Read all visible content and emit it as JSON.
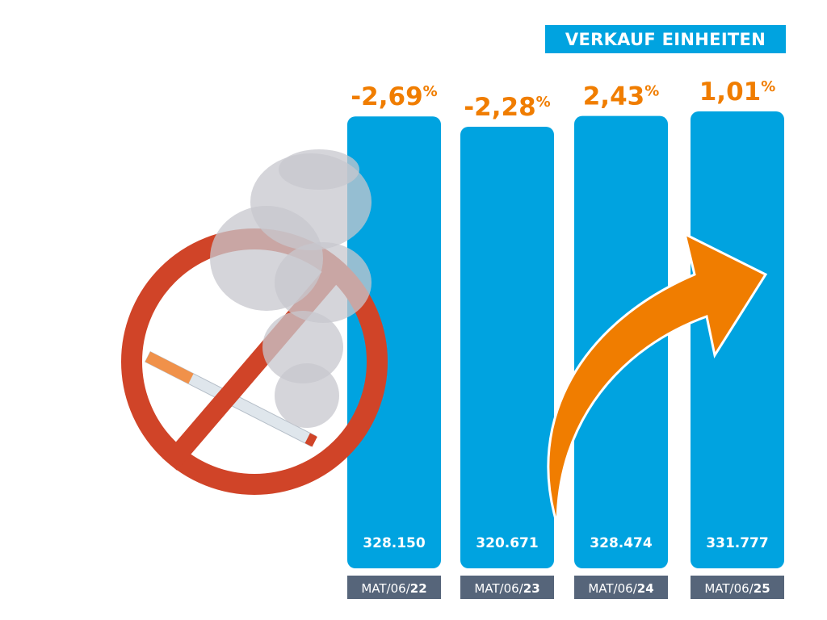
{
  "chart_data": {
    "type": "bar",
    "title": "VERKAUF EINHEITEN",
    "categories": [
      {
        "prefix": "MAT/06/",
        "year": "22"
      },
      {
        "prefix": "MAT/06/",
        "year": "23"
      },
      {
        "prefix": "MAT/06/",
        "year": "24"
      },
      {
        "prefix": "MAT/06/",
        "year": "25"
      }
    ],
    "values": [
      328150,
      320671,
      328474,
      331777
    ],
    "value_labels": [
      "328.150",
      "320.671",
      "328.474",
      "331.777"
    ],
    "change_labels": [
      "-2,69",
      "-2,28",
      "2,43",
      "1,01"
    ],
    "change_unit": "%",
    "ylim": [
      0,
      331777
    ],
    "xlabel": "",
    "ylabel": "",
    "grid": false
  },
  "colors": {
    "bar": "#00a3e0",
    "change": "#f07d00",
    "category_bg": "#56657a",
    "no_sign": "#d04428",
    "smoke": "#c9c9d0"
  }
}
